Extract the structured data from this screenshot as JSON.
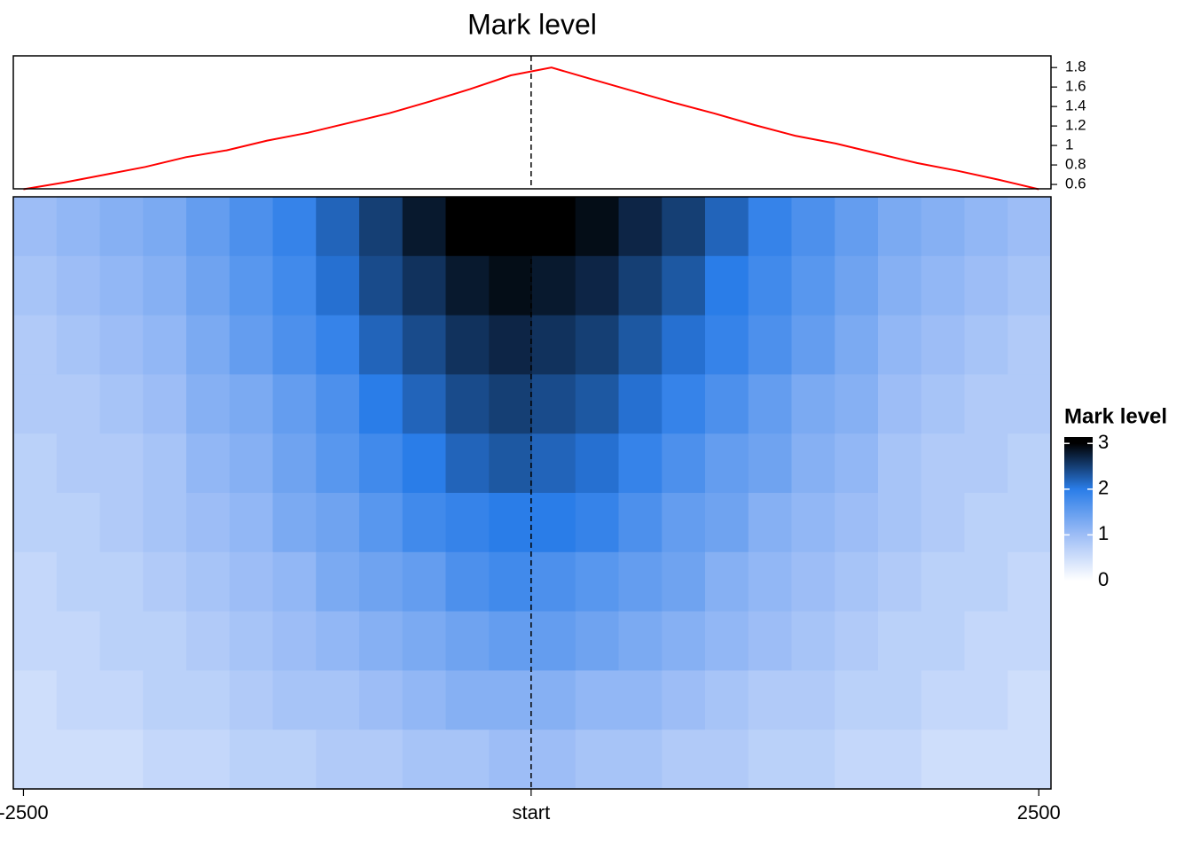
{
  "chart_data": [
    {
      "type": "line",
      "title": "Mark level",
      "color": "#ff0000",
      "x": [
        -2500,
        -2300,
        -2100,
        -1900,
        -1700,
        -1500,
        -1300,
        -1100,
        -900,
        -700,
        -500,
        -300,
        -100,
        100,
        300,
        500,
        700,
        900,
        1100,
        1300,
        1500,
        1700,
        1900,
        2100,
        2300,
        2500
      ],
      "values": [
        0.55,
        0.62,
        0.7,
        0.78,
        0.88,
        0.95,
        1.05,
        1.13,
        1.23,
        1.33,
        1.45,
        1.58,
        1.72,
        1.8,
        1.68,
        1.56,
        1.44,
        1.33,
        1.21,
        1.1,
        1.02,
        0.92,
        0.82,
        0.74,
        0.65,
        0.55
      ],
      "xlim": [
        -2550,
        2560
      ],
      "ylim": [
        0.555,
        1.92
      ],
      "yticks": [
        0.6,
        0.8,
        1,
        1.2,
        1.4,
        1.6,
        1.8
      ]
    },
    {
      "type": "heatmap",
      "xlim": [
        -2550,
        2560
      ],
      "xticks": [
        -2500,
        {
          "value": 0,
          "label": "start"
        },
        2500
      ],
      "legend_title": "Mark level",
      "legend_ticks": [
        0,
        1,
        2,
        3
      ],
      "legend_lim": [
        0,
        3.14
      ],
      "colors": [
        "#ffffff",
        "#9dbdf6",
        "#2a7de8",
        "#000000"
      ],
      "matrix": [
        [
          1.0,
          1.1,
          1.2,
          1.3,
          1.5,
          1.7,
          1.9,
          2.2,
          2.5,
          2.8,
          3.0,
          3.0,
          3.0,
          2.9,
          2.7,
          2.5,
          2.2,
          1.9,
          1.7,
          1.5,
          1.3,
          1.2,
          1.1,
          1.0
        ],
        [
          0.9,
          1.0,
          1.1,
          1.2,
          1.4,
          1.6,
          1.8,
          2.1,
          2.4,
          2.6,
          2.8,
          2.9,
          2.8,
          2.7,
          2.5,
          2.3,
          2.0,
          1.8,
          1.6,
          1.4,
          1.2,
          1.1,
          1.0,
          0.9
        ],
        [
          0.8,
          0.9,
          1.0,
          1.1,
          1.3,
          1.5,
          1.7,
          1.9,
          2.2,
          2.4,
          2.6,
          2.7,
          2.6,
          2.5,
          2.3,
          2.1,
          1.9,
          1.7,
          1.5,
          1.3,
          1.1,
          1.0,
          0.9,
          0.8
        ],
        [
          0.8,
          0.8,
          0.9,
          1.0,
          1.2,
          1.3,
          1.5,
          1.7,
          2.0,
          2.2,
          2.4,
          2.5,
          2.4,
          2.3,
          2.1,
          1.9,
          1.7,
          1.5,
          1.3,
          1.2,
          1.0,
          0.9,
          0.8,
          0.8
        ],
        [
          0.7,
          0.8,
          0.8,
          0.9,
          1.1,
          1.2,
          1.4,
          1.6,
          1.8,
          2.0,
          2.2,
          2.3,
          2.2,
          2.1,
          1.9,
          1.7,
          1.5,
          1.4,
          1.2,
          1.1,
          0.9,
          0.8,
          0.8,
          0.7
        ],
        [
          0.7,
          0.7,
          0.8,
          0.9,
          1.0,
          1.1,
          1.3,
          1.4,
          1.6,
          1.8,
          1.9,
          2.0,
          2.0,
          1.9,
          1.7,
          1.5,
          1.4,
          1.2,
          1.1,
          1.0,
          0.9,
          0.8,
          0.7,
          0.7
        ],
        [
          0.6,
          0.7,
          0.7,
          0.8,
          0.9,
          1.0,
          1.1,
          1.3,
          1.4,
          1.5,
          1.7,
          1.8,
          1.7,
          1.6,
          1.5,
          1.4,
          1.2,
          1.1,
          1.0,
          0.9,
          0.8,
          0.7,
          0.7,
          0.6
        ],
        [
          0.6,
          0.6,
          0.7,
          0.7,
          0.8,
          0.9,
          1.0,
          1.1,
          1.2,
          1.3,
          1.4,
          1.5,
          1.5,
          1.4,
          1.3,
          1.2,
          1.1,
          1.0,
          0.9,
          0.8,
          0.7,
          0.7,
          0.6,
          0.6
        ],
        [
          0.5,
          0.6,
          0.6,
          0.7,
          0.7,
          0.8,
          0.9,
          0.9,
          1.0,
          1.1,
          1.2,
          1.2,
          1.2,
          1.1,
          1.1,
          1.0,
          0.9,
          0.8,
          0.8,
          0.7,
          0.7,
          0.6,
          0.6,
          0.5
        ],
        [
          0.5,
          0.5,
          0.5,
          0.6,
          0.6,
          0.7,
          0.7,
          0.8,
          0.8,
          0.9,
          0.9,
          1.0,
          1.0,
          0.9,
          0.9,
          0.8,
          0.8,
          0.7,
          0.7,
          0.6,
          0.6,
          0.5,
          0.5,
          0.5
        ]
      ]
    }
  ]
}
